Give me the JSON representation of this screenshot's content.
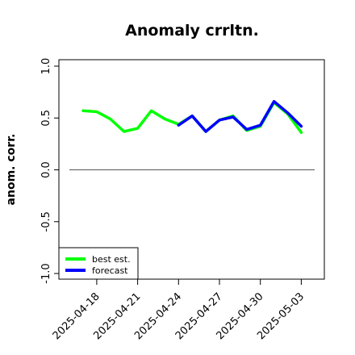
{
  "chart_data": {
    "type": "line",
    "title": "Anomaly crrltn.",
    "xlabel": "",
    "ylabel": "anom. corr.",
    "ylim": [
      -1.0,
      1.0
    ],
    "yticks": [
      -1.0,
      -0.5,
      0.0,
      0.5,
      1.0
    ],
    "ytick_labels": [
      "-1.0",
      "-0.5",
      "0.0",
      "0.5",
      "1.0"
    ],
    "x": [
      "2025-04-17",
      "2025-04-18",
      "2025-04-19",
      "2025-04-20",
      "2025-04-21",
      "2025-04-22",
      "2025-04-23",
      "2025-04-24",
      "2025-04-25",
      "2025-04-26",
      "2025-04-27",
      "2025-04-28",
      "2025-04-29",
      "2025-04-30",
      "2025-05-01",
      "2025-05-02",
      "2025-05-03"
    ],
    "xticks": [
      "2025-04-18",
      "2025-04-21",
      "2025-04-24",
      "2025-04-27",
      "2025-04-30",
      "2025-05-03"
    ],
    "highlight_tick": "2025-04-24",
    "highlight_color": "#228b22",
    "reference_line": 0.0,
    "series": [
      {
        "name": "best est.",
        "color": "#00ff00",
        "values": [
          0.57,
          0.56,
          0.49,
          0.37,
          0.4,
          0.57,
          0.49,
          0.44,
          0.52,
          0.37,
          0.48,
          0.52,
          0.38,
          0.42,
          0.65,
          0.54,
          0.36
        ]
      },
      {
        "name": "forecast",
        "color": "#0000ff",
        "values": [
          null,
          null,
          null,
          null,
          null,
          null,
          null,
          0.43,
          0.52,
          0.37,
          0.48,
          0.51,
          0.39,
          0.43,
          0.66,
          0.55,
          0.42
        ]
      }
    ],
    "legend_position": "bottom-left",
    "grid": false
  }
}
